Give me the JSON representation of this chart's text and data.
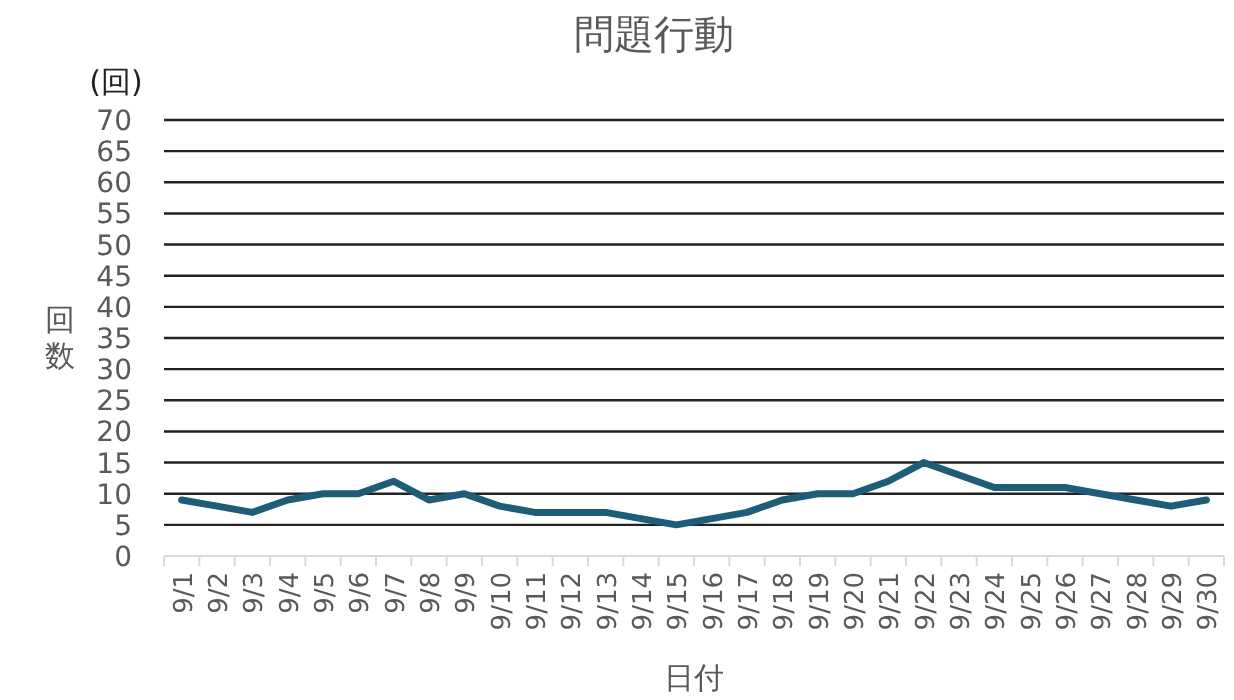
{
  "chart_data": {
    "type": "line",
    "title": "問題行動",
    "xlabel": "日付",
    "ylabel": "回数",
    "annotations": [
      "(回)"
    ],
    "categories": [
      "9/1",
      "9/2",
      "9/3",
      "9/4",
      "9/5",
      "9/6",
      "9/7",
      "9/8",
      "9/9",
      "9/10",
      "9/11",
      "9/12",
      "9/13",
      "9/14",
      "9/15",
      "9/16",
      "9/17",
      "9/18",
      "9/19",
      "9/20",
      "9/21",
      "9/22",
      "9/23",
      "9/24",
      "9/25",
      "9/26",
      "9/27",
      "9/28",
      "9/29",
      "9/30"
    ],
    "series": [
      {
        "color": "#1e5c78",
        "values": [
          9,
          8,
          7,
          9,
          10,
          10,
          12,
          9,
          10,
          8,
          7,
          7,
          7,
          6,
          5,
          6,
          7,
          9,
          10,
          10,
          12,
          15,
          13,
          11,
          11,
          11,
          10,
          9,
          8,
          9
        ]
      }
    ],
    "ylim": [
      0,
      70
    ],
    "yticks": [
      0,
      5,
      10,
      15,
      20,
      25,
      30,
      35,
      40,
      45,
      50,
      55,
      60,
      65,
      70
    ],
    "grid": "y",
    "marker": "none",
    "line_style": "solid"
  }
}
